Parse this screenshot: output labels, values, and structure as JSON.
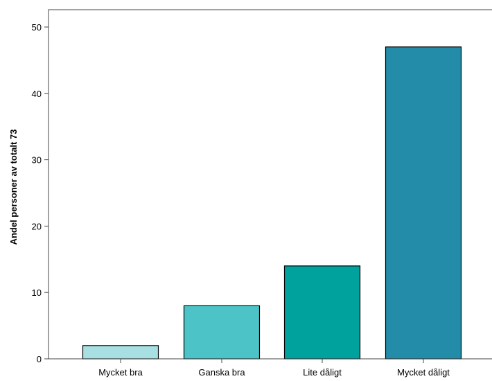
{
  "chart_data": {
    "type": "bar",
    "categories": [
      "Mycket bra",
      "Ganska bra",
      "Lite dåligt",
      "Mycket dåligt"
    ],
    "values": [
      2,
      8,
      14,
      47
    ],
    "colors": [
      "#a8dfe2",
      "#4cc3c6",
      "#00a29e",
      "#238ca8"
    ],
    "title": "",
    "xlabel": "",
    "ylabel": "Andel personer av totalt 73",
    "ylim": [
      0,
      53
    ],
    "yticks": [
      0,
      10,
      20,
      30,
      40,
      50
    ],
    "grid": false,
    "legend": "none"
  }
}
